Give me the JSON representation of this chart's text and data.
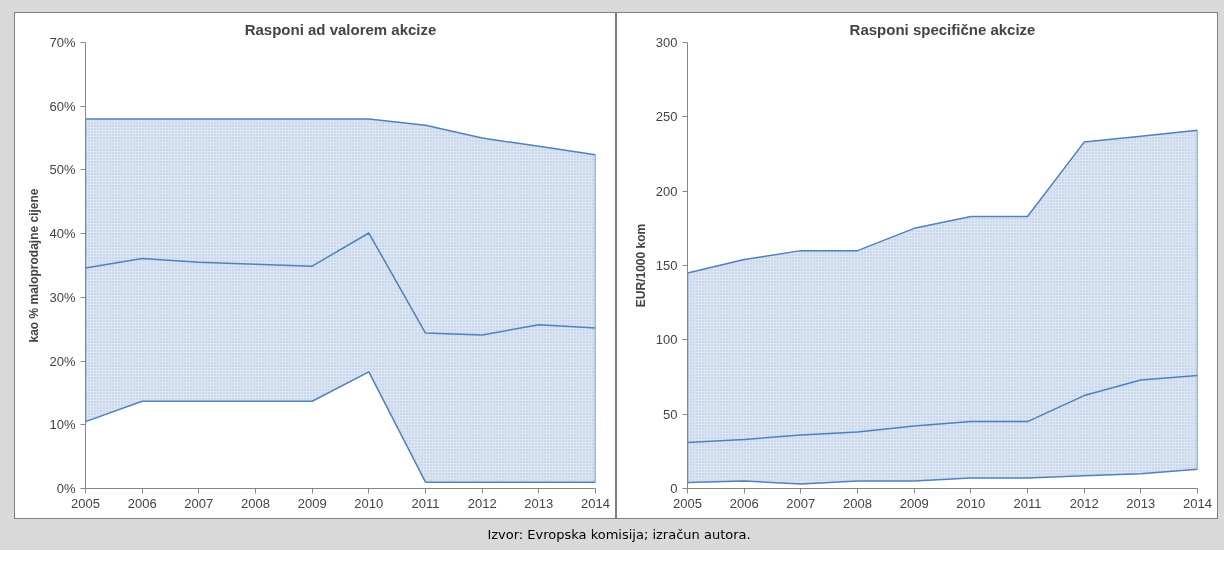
{
  "chart_data": [
    {
      "type": "line",
      "title": "Rasponi ad valorem akcize",
      "ylabel": "kao % maloprodajne cijene",
      "x": [
        2005,
        2006,
        2007,
        2008,
        2009,
        2010,
        2011,
        2012,
        2013,
        2014
      ],
      "series": [
        {
          "color": "#4f81bd",
          "values": [
            34.6,
            36.1,
            35.5,
            35.2,
            34.9,
            40.1,
            24.4,
            24.1,
            25.7,
            25.2
          ],
          "lower": [
            10.5,
            13.7,
            13.7,
            13.7,
            13.7,
            18.3,
            1,
            1,
            1,
            1
          ],
          "upper": [
            58,
            58,
            58,
            58,
            58,
            58,
            57,
            55,
            53.7,
            52.4
          ]
        }
      ],
      "xlim": [
        2005,
        2014
      ],
      "xticks": [
        2005,
        2006,
        2007,
        2008,
        2009,
        2010,
        2011,
        2012,
        2013,
        2014
      ],
      "ylim": [
        0,
        70
      ],
      "yticks": [
        {
          "value": 0,
          "label": "0%"
        },
        {
          "value": 10,
          "label": "10%"
        },
        {
          "value": 20,
          "label": "20%"
        },
        {
          "value": 30,
          "label": "30%"
        },
        {
          "value": 40,
          "label": "40%"
        },
        {
          "value": 50,
          "label": "50%"
        },
        {
          "value": 60,
          "label": "60%"
        },
        {
          "value": 70,
          "label": "70%"
        }
      ]
    },
    {
      "type": "line",
      "title": "Rasponi specifične akcize",
      "ylabel": "EUR/1000 kom",
      "x": [
        2005,
        2006,
        2007,
        2008,
        2009,
        2010,
        2011,
        2012,
        2013,
        2014
      ],
      "series": [
        {
          "color": "#4f81bd",
          "values": [
            31,
            33,
            36,
            38,
            42,
            45,
            45,
            62.5,
            73,
            76
          ],
          "lower": [
            4,
            5,
            3,
            5,
            5,
            7,
            7,
            8.5,
            10,
            13
          ],
          "upper": [
            145,
            154,
            160,
            160,
            175,
            183,
            183,
            233,
            237,
            241
          ]
        }
      ],
      "xlim": [
        2005,
        2014
      ],
      "xticks": [
        2005,
        2006,
        2007,
        2008,
        2009,
        2010,
        2011,
        2012,
        2013,
        2014
      ],
      "ylim": [
        0,
        300
      ],
      "yticks": [
        0,
        50,
        100,
        150,
        200,
        250,
        300
      ],
      "annotations": [
        "Izvor: Evropska komisija; izračun autora."
      ]
    }
  ]
}
